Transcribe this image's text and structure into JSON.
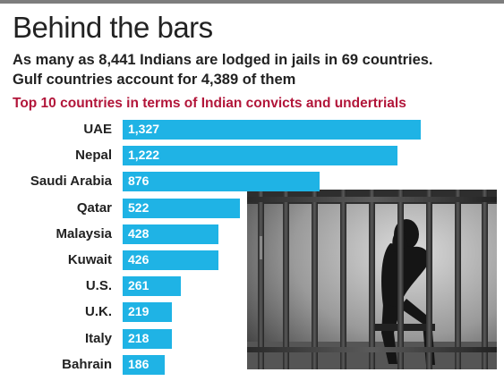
{
  "header": {
    "title": "Behind the bars",
    "subtitle_line1": "As many as 8,441 Indians are lodged in jails in 69 countries.",
    "subtitle_line2": "Gulf countries account for 4,389 of them"
  },
  "colors": {
    "bar": "#1fb3e5",
    "heading": "#b2163a",
    "rule": "#7d7d7d"
  },
  "chart_data": {
    "type": "bar",
    "orientation": "horizontal",
    "title": "Top 10 countries in terms of Indian convicts and undertrials",
    "categories": [
      "UAE",
      "Nepal",
      "Saudi Arabia",
      "Qatar",
      "Malaysia",
      "Kuwait",
      "U.S.",
      "U.K.",
      "Italy",
      "Bahrain"
    ],
    "values": [
      1327,
      1222,
      876,
      522,
      428,
      426,
      261,
      219,
      218,
      186
    ],
    "value_labels": [
      "1,327",
      "1,222",
      "876",
      "522",
      "428",
      "426",
      "261",
      "219",
      "218",
      "186"
    ],
    "xlim": [
      0,
      1327
    ],
    "grid": false,
    "legend": "none"
  }
}
